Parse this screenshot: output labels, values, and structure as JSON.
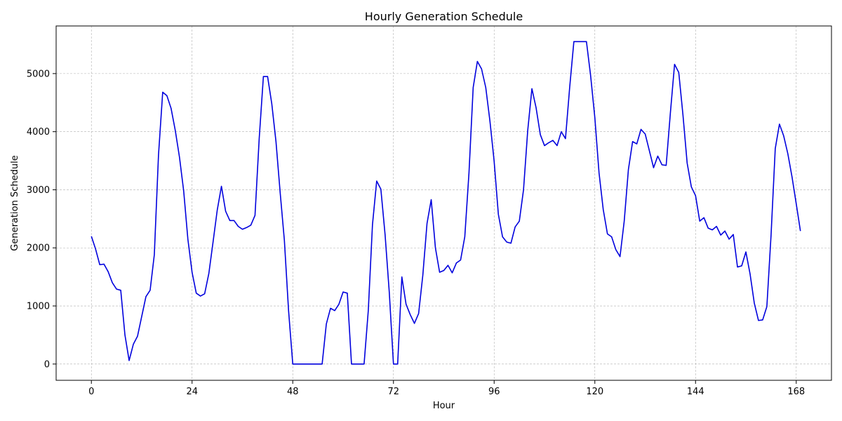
{
  "chart_data": {
    "type": "line",
    "title": "Hourly Generation Schedule",
    "xlabel": "Hour",
    "ylabel": "Generation Schedule",
    "xlim": [
      -8.4,
      176.4
    ],
    "ylim": [
      -280,
      5820
    ],
    "xticks": [
      0,
      24,
      48,
      72,
      96,
      120,
      144,
      168
    ],
    "yticks": [
      0,
      1000,
      2000,
      3000,
      4000,
      5000
    ],
    "grid": true,
    "line_color": "#0000dd",
    "series": [
      {
        "values": [
          2200,
          1980,
          1710,
          1720,
          1590,
          1400,
          1290,
          1270,
          500,
          60,
          340,
          480,
          820,
          1160,
          1270,
          1880,
          3600,
          4680,
          4620,
          4400,
          4020,
          3560,
          2980,
          2150,
          1580,
          1220,
          1170,
          1210,
          1560,
          2100,
          2650,
          3060,
          2630,
          2470,
          2470,
          2370,
          2320,
          2350,
          2390,
          2560,
          3880,
          4950,
          4950,
          4480,
          3830,
          2950,
          2130,
          920,
          0,
          0,
          0,
          0,
          0,
          0,
          0,
          0,
          690,
          960,
          920,
          1030,
          1240,
          1220,
          0,
          0,
          0,
          0,
          920,
          2400,
          3150,
          3010,
          2230,
          1240,
          0,
          0,
          1500,
          1030,
          850,
          700,
          870,
          1530,
          2420,
          2830,
          2000,
          1580,
          1610,
          1700,
          1570,
          1740,
          1790,
          2190,
          3290,
          4760,
          5210,
          5080,
          4760,
          4180,
          3490,
          2580,
          2190,
          2100,
          2080,
          2360,
          2460,
          3000,
          4020,
          4740,
          4410,
          3950,
          3760,
          3810,
          3850,
          3760,
          4000,
          3880,
          4760,
          5550,
          5550,
          5550,
          5550,
          4960,
          4240,
          3290,
          2660,
          2240,
          2190,
          1970,
          1850,
          2460,
          3350,
          3830,
          3790,
          4040,
          3960,
          3670,
          3380,
          3580,
          3430,
          3420,
          4320,
          5160,
          5020,
          4290,
          3460,
          3050,
          2900,
          2460,
          2520,
          2340,
          2310,
          2370,
          2220,
          2290,
          2150,
          2230,
          1670,
          1690,
          1930,
          1550,
          1050,
          750,
          760,
          990,
          2220,
          3710,
          4130,
          3930,
          3620,
          3220,
          2760,
          2290
        ]
      }
    ]
  }
}
